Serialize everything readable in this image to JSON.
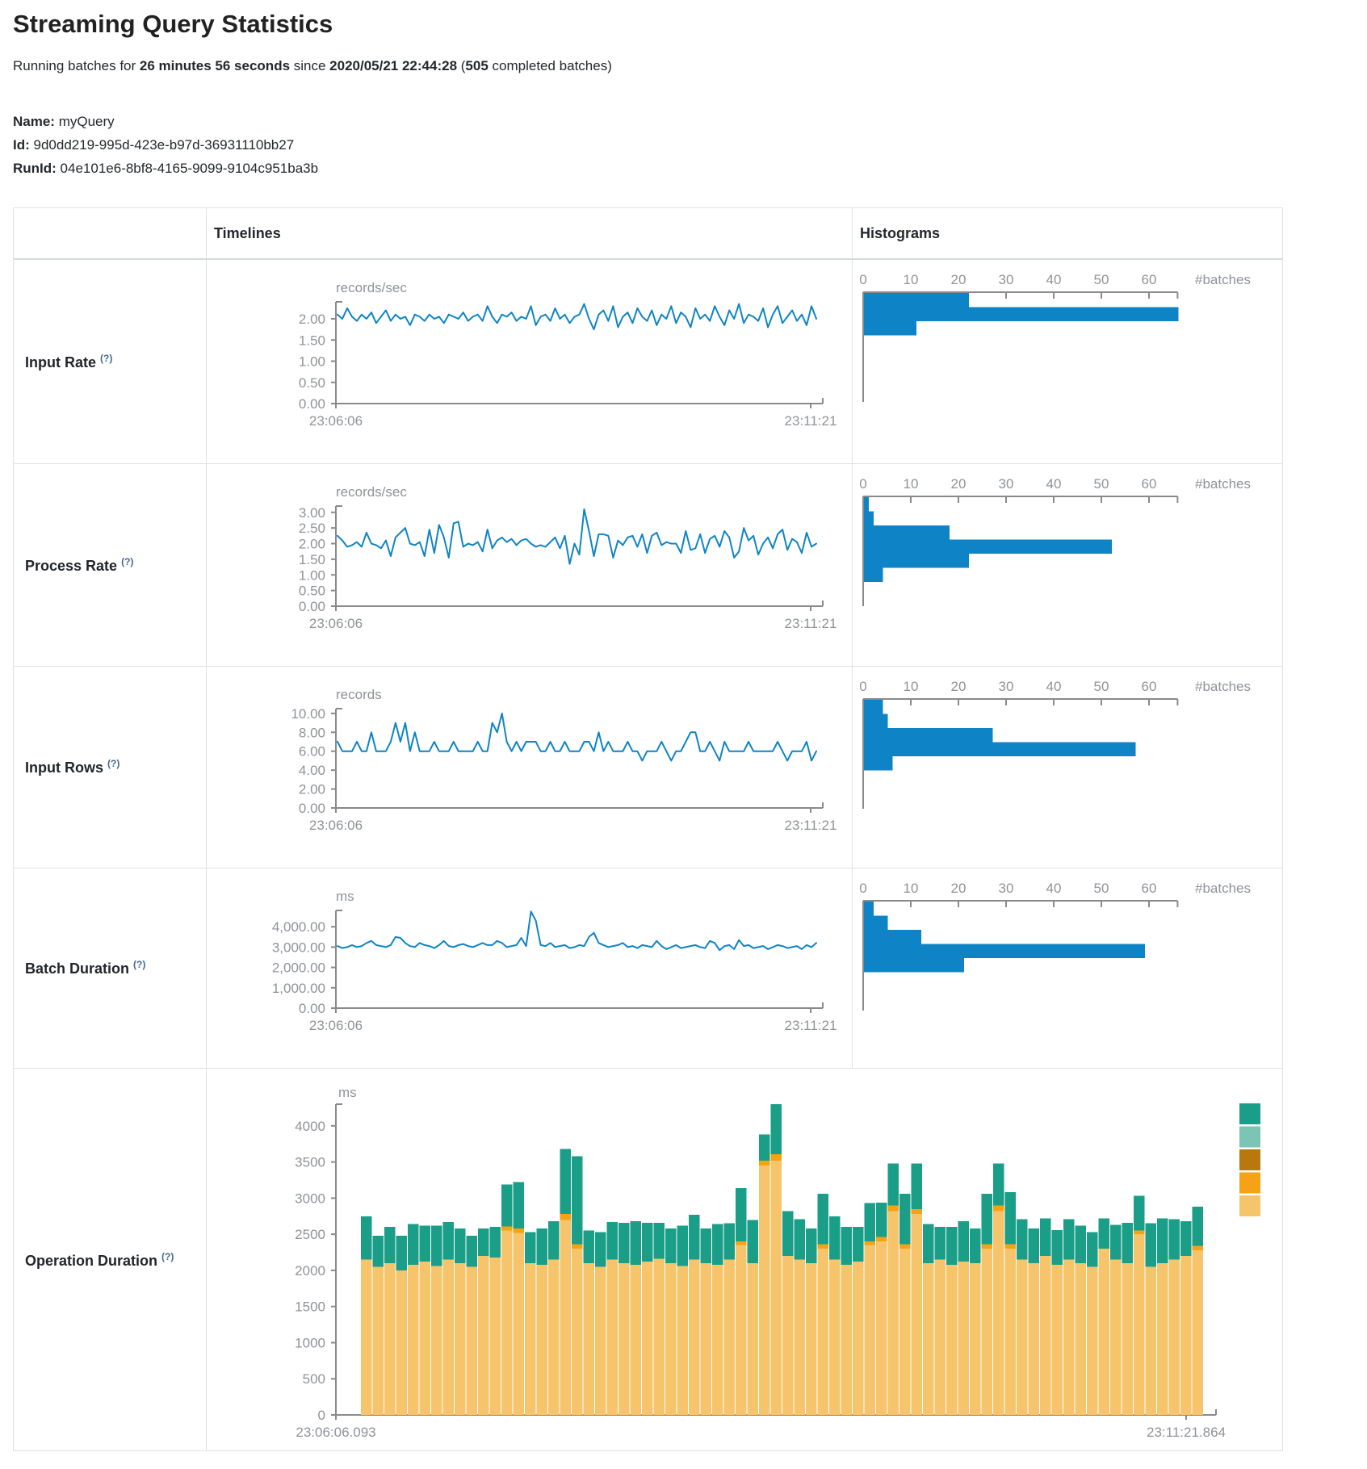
{
  "header": {
    "title": "Streaming Query Statistics",
    "running_prefix": "Running batches for ",
    "duration": "26 minutes 56 seconds",
    "since_infix": " since ",
    "start_time": "2020/05/21 22:44:28",
    "batches_open": " (",
    "batches_count": "505",
    "batches_suffix": " completed batches)"
  },
  "meta": {
    "name_label": "Name:",
    "name_value": " myQuery",
    "id_label": "Id:",
    "id_value": " 9d0dd219-995d-423e-b97d-36931110bb27",
    "runid_label": "RunId:",
    "runid_value": " 04e101e6-8bf8-4165-9099-9104c951ba3b"
  },
  "table": {
    "col_timelines": "Timelines",
    "col_histograms": "Histograms",
    "hint": "(?)",
    "rows": [
      {
        "label": "Input Rate"
      },
      {
        "label": "Process Rate"
      },
      {
        "label": "Input Rows"
      },
      {
        "label": "Batch Duration"
      },
      {
        "label": "Operation Duration"
      }
    ]
  },
  "colors": {
    "line_blue": "#0e84c6",
    "hist_blue": "#0e84c6",
    "axis_gray": "#8a8a8a",
    "label_gray": "#8f9398",
    "teal": "#1a9e87",
    "light_teal": "#7cc5b2",
    "dark_goldenrod": "#b8770f",
    "orange": "#f5a214",
    "tan": "#f6c46a"
  },
  "chart_data": {
    "metrics": [
      {
        "name": "input-rate",
        "type": "line+histogram",
        "unit": "records/sec",
        "x_start": "23:06:06",
        "x_end": "23:11:21",
        "ylim": [
          0,
          2.4
        ],
        "yticks": [
          [
            2,
            "2.00"
          ],
          [
            1.5,
            "1.50"
          ],
          [
            1,
            "1.00"
          ],
          [
            0.5,
            "0.50"
          ],
          [
            0,
            "0.00"
          ]
        ],
        "values": [
          2.1,
          2.0,
          2.25,
          2.05,
          1.95,
          2.1,
          2.0,
          2.15,
          1.9,
          2.05,
          2.2,
          1.95,
          2.1,
          2.0,
          2.05,
          1.85,
          2.1,
          2.05,
          1.95,
          2.1,
          2.0,
          2.05,
          1.9,
          2.1,
          2.05,
          2.0,
          2.15,
          1.95,
          2.05,
          2.1,
          1.95,
          2.3,
          2.05,
          1.9,
          2.1,
          2.05,
          2.15,
          1.95,
          2.05,
          2.0,
          2.3,
          1.85,
          2.05,
          2.1,
          1.95,
          2.25,
          2.0,
          2.1,
          1.9,
          2.05,
          2.1,
          2.35,
          2.0,
          1.75,
          2.1,
          2.2,
          1.95,
          2.3,
          1.8,
          2.05,
          2.15,
          1.9,
          2.25,
          2.05,
          1.95,
          2.2,
          1.85,
          2.1,
          2.0,
          2.3,
          1.9,
          2.15,
          2.05,
          1.8,
          2.25,
          2.0,
          2.1,
          1.95,
          2.3,
          2.05,
          1.85,
          2.2,
          2.0,
          2.35,
          1.9,
          2.1,
          2.05,
          1.95,
          2.25,
          1.8,
          2.1,
          2.3,
          1.9,
          2.05,
          2.2,
          1.95,
          2.1,
          1.85,
          2.3,
          2.0
        ],
        "histogram": {
          "xticks": [
            0,
            10,
            20,
            30,
            40,
            50,
            60
          ],
          "xmax": 66,
          "axis_label": "#batches",
          "bins": [
            22,
            66,
            11
          ]
        }
      },
      {
        "name": "process-rate",
        "type": "line+histogram",
        "unit": "records/sec",
        "x_start": "23:06:06",
        "x_end": "23:11:21",
        "ylim": [
          0,
          3.2
        ],
        "yticks": [
          [
            3,
            "3.00"
          ],
          [
            2.5,
            "2.50"
          ],
          [
            2,
            "2.00"
          ],
          [
            1.5,
            "1.50"
          ],
          [
            1,
            "1.00"
          ],
          [
            0.5,
            "0.50"
          ],
          [
            0,
            "0.00"
          ]
        ],
        "values": [
          2.25,
          2.1,
          1.9,
          1.95,
          2.05,
          1.9,
          2.35,
          2.0,
          1.95,
          1.85,
          2.1,
          1.6,
          2.2,
          2.35,
          2.5,
          2.0,
          1.95,
          2.05,
          1.6,
          2.45,
          1.7,
          2.6,
          2.2,
          1.55,
          2.65,
          2.7,
          1.9,
          2.0,
          1.95,
          2.05,
          1.75,
          2.45,
          1.85,
          2.1,
          2.2,
          2.05,
          2.15,
          1.95,
          2.1,
          2.15,
          2.0,
          1.9,
          1.95,
          1.9,
          2.05,
          2.2,
          1.85,
          2.25,
          1.35,
          2.0,
          1.65,
          3.1,
          2.4,
          1.6,
          2.3,
          2.3,
          2.25,
          1.55,
          2.1,
          1.95,
          2.2,
          2.25,
          1.9,
          2.3,
          1.7,
          2.25,
          2.35,
          1.95,
          2.05,
          2.0,
          2.0,
          1.7,
          2.4,
          1.8,
          1.85,
          2.3,
          1.7,
          2.15,
          2.25,
          1.9,
          2.4,
          2.2,
          1.55,
          1.75,
          2.5,
          2.1,
          2.25,
          1.65,
          2.0,
          2.2,
          1.85,
          2.3,
          2.45,
          1.8,
          2.15,
          2.05,
          1.7,
          2.35,
          1.9,
          2.0
        ],
        "histogram": {
          "xticks": [
            0,
            10,
            20,
            30,
            40,
            50,
            60
          ],
          "xmax": 66,
          "axis_label": "#batches",
          "bins": [
            1,
            2,
            18,
            52,
            22,
            4
          ]
        }
      },
      {
        "name": "input-rows",
        "type": "line+histogram",
        "unit": "records",
        "x_start": "23:06:06",
        "x_end": "23:11:21",
        "ylim": [
          0,
          10.5
        ],
        "yticks": [
          [
            10,
            "10.00"
          ],
          [
            8,
            "8.00"
          ],
          [
            6,
            "6.00"
          ],
          [
            4,
            "4.00"
          ],
          [
            2,
            "2.00"
          ],
          [
            0,
            "0.00"
          ]
        ],
        "values": [
          7,
          6,
          6,
          6,
          7,
          6,
          6,
          8,
          6,
          6,
          6,
          7,
          9,
          7,
          9,
          6,
          8,
          6,
          6,
          6,
          7,
          6,
          6,
          6,
          7,
          6,
          6,
          6,
          6,
          7,
          6,
          6,
          9,
          8,
          10,
          7,
          6,
          7,
          6,
          7,
          7,
          7,
          6,
          6,
          7,
          6,
          6,
          7,
          6,
          6,
          6,
          7,
          7,
          6,
          8,
          6,
          7,
          6,
          6,
          6,
          7,
          6,
          6,
          5,
          6,
          6,
          6,
          7,
          6,
          5,
          6,
          6,
          7,
          8,
          8,
          6,
          6,
          7,
          6,
          5,
          7,
          6,
          6,
          6,
          6,
          7,
          6,
          6,
          6,
          6,
          6,
          7,
          6,
          5,
          6,
          6,
          6,
          7,
          5,
          6
        ],
        "histogram": {
          "xticks": [
            0,
            10,
            20,
            30,
            40,
            50,
            60
          ],
          "xmax": 66,
          "axis_label": "#batches",
          "bins": [
            4,
            5,
            27,
            57,
            6
          ]
        }
      },
      {
        "name": "batch-duration",
        "type": "line+histogram",
        "unit": "ms",
        "x_start": "23:06:06",
        "x_end": "23:11:21",
        "ylim": [
          0,
          4800
        ],
        "yticks": [
          [
            4000,
            "4,000.00"
          ],
          [
            3000,
            "3,000.00"
          ],
          [
            2000,
            "2,000.00"
          ],
          [
            1000,
            "1,000.00"
          ],
          [
            0,
            "0.00"
          ]
        ],
        "values": [
          3050,
          2950,
          3000,
          3100,
          3000,
          3050,
          3200,
          3300,
          3100,
          3050,
          3000,
          3100,
          3500,
          3450,
          3200,
          3050,
          3000,
          3200,
          3100,
          3050,
          2950,
          3100,
          3300,
          3050,
          3000,
          3100,
          3150,
          3050,
          3000,
          3100,
          3200,
          3100,
          3100,
          3300,
          3200,
          3000,
          3050,
          3100,
          3450,
          3050,
          4750,
          4300,
          3100,
          3050,
          3200,
          3000,
          3050,
          3100,
          2950,
          3000,
          3100,
          3050,
          3500,
          3700,
          3200,
          3100,
          3000,
          3050,
          3100,
          3200,
          3000,
          3050,
          2950,
          3100,
          3050,
          3000,
          3300,
          3050,
          2900,
          3000,
          3100,
          2950,
          3000,
          3050,
          3100,
          3000,
          2950,
          3300,
          3200,
          2850,
          3050,
          3100,
          2900,
          3350,
          3050,
          3100,
          2950,
          3000,
          3050,
          2900,
          3000,
          3100,
          3050,
          2950,
          3000,
          3050,
          2900,
          3100,
          3000,
          3200
        ],
        "histogram": {
          "xticks": [
            0,
            10,
            20,
            30,
            40,
            50,
            60
          ],
          "xmax": 66,
          "axis_label": "#batches",
          "bins": [
            2,
            5,
            12,
            59,
            21
          ]
        }
      }
    ],
    "operation_duration": {
      "type": "stacked-bar",
      "unit": "ms",
      "x_start": "23:06:06.093",
      "x_end": "23:11:21.864",
      "ylim": [
        0,
        4300
      ],
      "yticks": [
        [
          4000,
          "4000"
        ],
        [
          3500,
          "3500"
        ],
        [
          3000,
          "3000"
        ],
        [
          2500,
          "2500"
        ],
        [
          2000,
          "2000"
        ],
        [
          1500,
          "1500"
        ],
        [
          1000,
          "1000"
        ],
        [
          500,
          "500"
        ],
        [
          0,
          "0"
        ]
      ],
      "series": [
        {
          "color_name": "tan",
          "color": "#f6c46a",
          "values": [
            2150,
            2050,
            2100,
            2000,
            2080,
            2120,
            2060,
            2150,
            2100,
            2050,
            2200,
            2180,
            2550,
            2520,
            2100,
            2080,
            2150,
            2700,
            2300,
            2100,
            2050,
            2150,
            2100,
            2080,
            2120,
            2160,
            2100,
            2060,
            2150,
            2100,
            2080,
            2150,
            2350,
            2100,
            3450,
            3520,
            2200,
            2150,
            2100,
            2300,
            2150,
            2080,
            2120,
            2350,
            2400,
            2820,
            2300,
            2780,
            2100,
            2150,
            2080,
            2120,
            2100,
            2300,
            2820,
            2300,
            2150,
            2100,
            2200,
            2080,
            2150,
            2100,
            2050,
            2300,
            2150,
            2100,
            2500,
            2050,
            2100,
            2150,
            2200,
            2280
          ]
        },
        {
          "color_name": "orange",
          "color": "#f5a214",
          "values": [
            0,
            0,
            0,
            0,
            0,
            0,
            0,
            0,
            0,
            0,
            0,
            0,
            60,
            60,
            0,
            0,
            0,
            80,
            60,
            0,
            0,
            0,
            0,
            0,
            0,
            0,
            0,
            0,
            0,
            0,
            0,
            0,
            50,
            0,
            70,
            90,
            0,
            0,
            0,
            60,
            0,
            0,
            0,
            50,
            60,
            80,
            60,
            70,
            0,
            0,
            0,
            0,
            0,
            60,
            80,
            60,
            0,
            0,
            0,
            0,
            0,
            0,
            0,
            0,
            0,
            0,
            50,
            0,
            0,
            0,
            0,
            60
          ]
        },
        {
          "color_name": "dark-goldenrod",
          "color": "#b8770f",
          "values": 0
        },
        {
          "color_name": "light-teal",
          "color": "#7cc5b2",
          "values": 0
        },
        {
          "color_name": "teal",
          "color": "#1a9e87",
          "values": [
            600,
            430,
            500,
            480,
            560,
            500,
            560,
            520,
            480,
            430,
            380,
            420,
            580,
            640,
            430,
            500,
            530,
            900,
            1220,
            450,
            480,
            520,
            560,
            600,
            540,
            500,
            480,
            560,
            620,
            480,
            560,
            500,
            740,
            600,
            360,
            690,
            620,
            560,
            480,
            700,
            600,
            520,
            480,
            530,
            480,
            580,
            700,
            630,
            540,
            450,
            520,
            560,
            480,
            700,
            580,
            720,
            560,
            480,
            520,
            480,
            560,
            520,
            480,
            420,
            480,
            560,
            480,
            600,
            620,
            560,
            480,
            540
          ]
        }
      ],
      "legend_colors_top_to_bottom": [
        "#1a9e87",
        "#7cc5b2",
        "#b8770f",
        "#f5a214",
        "#f6c46a"
      ]
    }
  }
}
